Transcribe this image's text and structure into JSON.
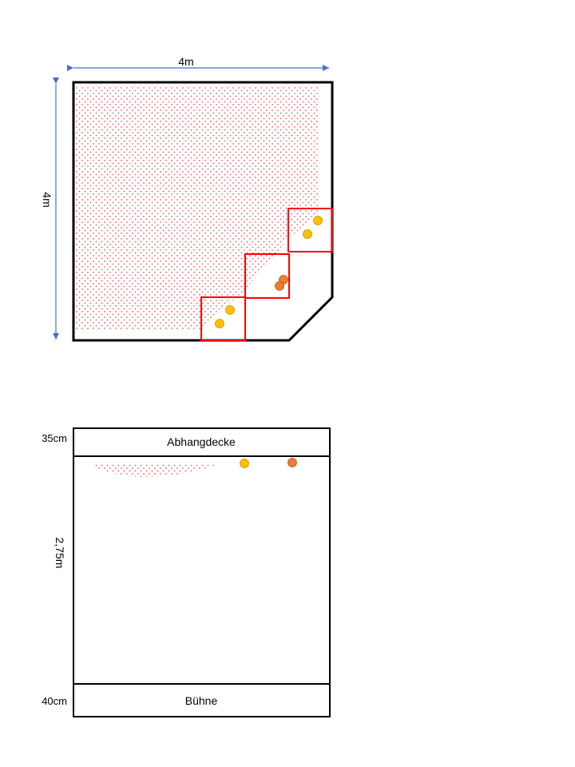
{
  "plan": {
    "width_label": "4m",
    "height_label": "4m"
  },
  "section": {
    "ceiling_label": "Abhangdecke",
    "ceiling_height_label": "35cm",
    "room_height_label": "2,75m",
    "stage_label": "Bühne",
    "stage_height_label": "40cm"
  },
  "colors": {
    "arrow": "#4472c4",
    "hatch": "#e06060",
    "sensor_box": "#ff0000",
    "light_yellow": "#ffc000",
    "light_orange": "#ed7d31"
  }
}
